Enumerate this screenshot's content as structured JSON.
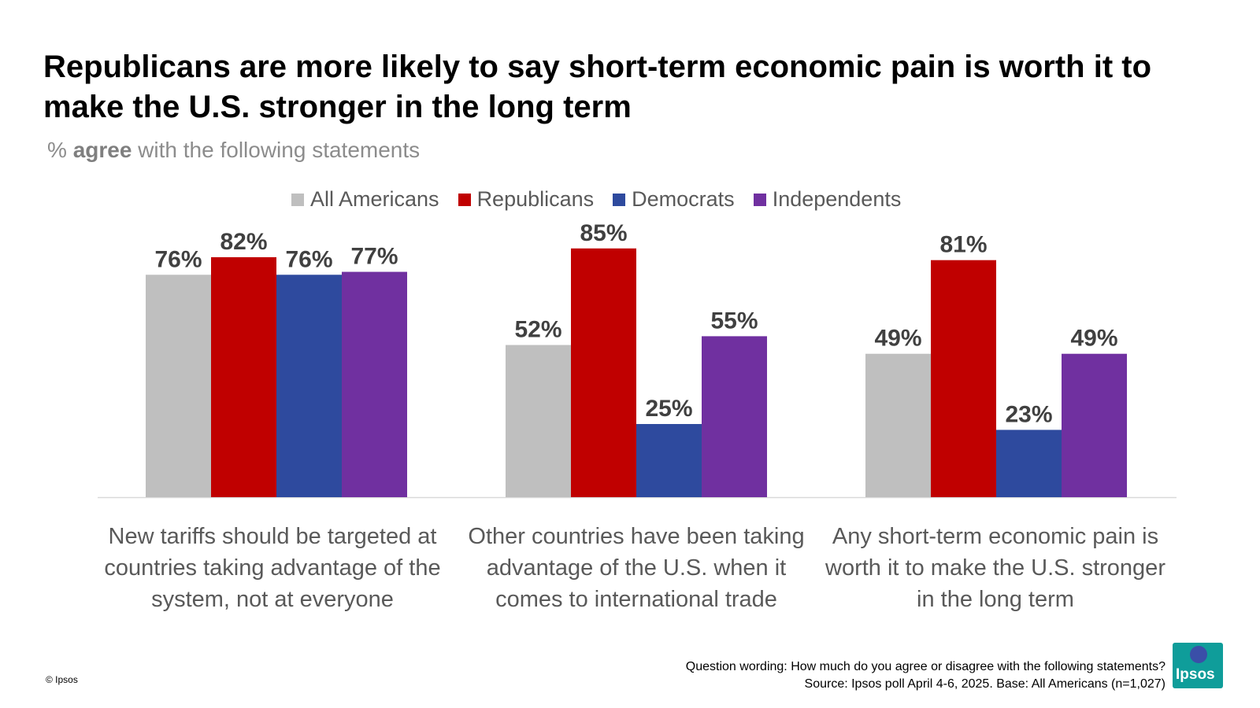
{
  "header": {
    "title": "Republicans are more likely to say short-term economic pain is worth it to make the U.S. stronger in the long term",
    "subtitle_prefix": "% ",
    "subtitle_bold": "agree",
    "subtitle_rest": " with the following statements"
  },
  "chart_data": {
    "type": "bar",
    "categories": [
      "New tariffs should be targeted at countries taking advantage of the system, not at everyone",
      "Other countries have been taking advantage of the U.S. when it comes to international trade",
      "Any short-term economic pain is worth it to make the U.S. stronger in the long term"
    ],
    "series": [
      {
        "name": "All Americans",
        "color": "#bfbfbf",
        "values": [
          76,
          52,
          49
        ]
      },
      {
        "name": "Republicans",
        "color": "#c00000",
        "values": [
          82,
          85,
          81
        ]
      },
      {
        "name": "Democrats",
        "color": "#2e4a9e",
        "values": [
          76,
          25,
          23
        ]
      },
      {
        "name": "Independents",
        "color": "#7030a0",
        "values": [
          77,
          55,
          49
        ]
      }
    ],
    "value_suffix": "%",
    "ylim": [
      0,
      100
    ],
    "legend_position": "top",
    "grid": false
  },
  "footer": {
    "question_wording": "Question wording: How much do you agree or disagree with the following statements?",
    "source": "Source: Ipsos poll April 4-6, 2025. Base: All Americans (n=1,027)",
    "copyright": "© Ipsos",
    "logo_text": "Ipsos"
  }
}
